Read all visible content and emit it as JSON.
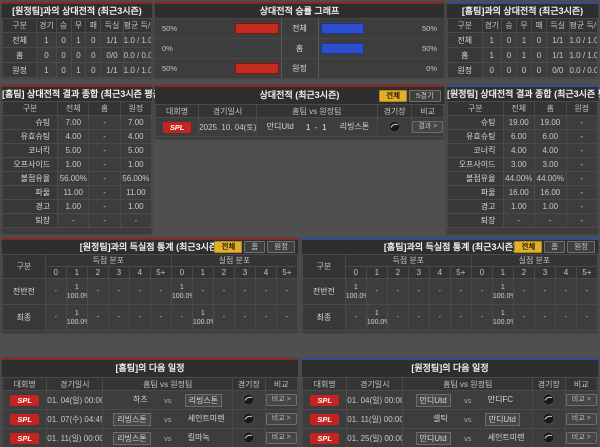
{
  "theme": {
    "red_accent": "#8a2523",
    "blue_accent": "#2d4f95",
    "bar_red": "#c32a20",
    "bar_blue": "#2c4fcd",
    "badge_red": "#c5231f",
    "selected_yellow": "#e3b02e"
  },
  "labels": {
    "vs": "vs"
  },
  "h2h_away": {
    "title": "[원정팀]과의 상대전적 (최근3시즌)",
    "columns": [
      "구분",
      "경기",
      "승",
      "무",
      "패",
      "득실",
      "평균 득/실"
    ],
    "rows": [
      {
        "label": "전체",
        "cells": [
          "1",
          "0",
          "1",
          "0",
          "1/1",
          "1.0 / 1.0"
        ]
      },
      {
        "label": "홈",
        "cells": [
          "0",
          "0",
          "0",
          "0",
          "0/0",
          "0.0 / 0.0"
        ]
      },
      {
        "label": "원정",
        "cells": [
          "1",
          "0",
          "1",
          "0",
          "1/1",
          "1.0 / 1.0"
        ]
      }
    ]
  },
  "winrate_chart": {
    "title": "상대전적 승률 그래프",
    "type": "bar",
    "rows": [
      {
        "left_pct": "50%",
        "left_val": 50,
        "label": "전체",
        "right_val": 50,
        "right_pct": "50%"
      },
      {
        "left_pct": "0%",
        "left_val": 0,
        "label": "홈",
        "right_val": 50,
        "right_pct": "50%"
      },
      {
        "left_pct": "50%",
        "left_val": 50,
        "label": "원정",
        "right_val": 0,
        "right_pct": "0%"
      }
    ]
  },
  "h2h_home": {
    "title": "[홈팀]과의 상대전적 (최근3시즌)",
    "columns": [
      "구분",
      "경기",
      "승",
      "무",
      "패",
      "득실",
      "평균 득/실"
    ],
    "rows": [
      {
        "label": "전체",
        "cells": [
          "1",
          "0",
          "1",
          "0",
          "1/1",
          "1.0 / 1.0"
        ]
      },
      {
        "label": "홈",
        "cells": [
          "1",
          "0",
          "1",
          "0",
          "1/1",
          "1.0 / 1.0"
        ]
      },
      {
        "label": "원정",
        "cells": [
          "0",
          "0",
          "0",
          "0",
          "0/0",
          "0.0 / 0.0"
        ]
      }
    ]
  },
  "stats_home": {
    "title": "[홈팀] 상대전적 결과 종합 (최근3시즌 평균)",
    "columns": [
      "구분",
      "전체",
      "홈",
      "원정"
    ],
    "rows": [
      {
        "label": "슈팅",
        "cells": [
          "7.00",
          "-",
          "7.00"
        ]
      },
      {
        "label": "유효슈팅",
        "cells": [
          "4.00",
          "-",
          "4.00"
        ]
      },
      {
        "label": "코너킥",
        "cells": [
          "5.00",
          "-",
          "5.00"
        ]
      },
      {
        "label": "오프사이드",
        "cells": [
          "1.00",
          "-",
          "1.00"
        ]
      },
      {
        "label": "볼점유율",
        "cells": [
          "56.00%",
          "-",
          "56.00%"
        ]
      },
      {
        "label": "파울",
        "cells": [
          "11.00",
          "-",
          "11.00"
        ]
      },
      {
        "label": "경고",
        "cells": [
          "1.00",
          "-",
          "1.00"
        ]
      },
      {
        "label": "퇴장",
        "cells": [
          "-",
          "-",
          "-"
        ]
      }
    ]
  },
  "matches": {
    "title": "상대전적 (최근3시즌)",
    "filters": [
      {
        "label": "전체",
        "selected": true
      },
      {
        "label": "5경기",
        "selected": false
      }
    ],
    "columns": [
      "대회명",
      "경기일시",
      "홈팀 vs 원정팀",
      "경기장",
      "비교"
    ],
    "row": {
      "league": "SPL",
      "date": "2025. 10. 04(토)",
      "home": "만디Utd",
      "score": "1 - 1",
      "away": "리빙스톤",
      "button": "결과 >"
    }
  },
  "stats_away": {
    "title": "[원정팀] 상대전적 결과 종합 (최근3시즌 평균)",
    "columns": [
      "구분",
      "전체",
      "홈",
      "원정"
    ],
    "rows": [
      {
        "label": "슈팅",
        "cells": [
          "19.00",
          "19.00",
          "-"
        ]
      },
      {
        "label": "유효슈팅",
        "cells": [
          "6.00",
          "6.00",
          "-"
        ]
      },
      {
        "label": "코너킥",
        "cells": [
          "4.00",
          "4.00",
          "-"
        ]
      },
      {
        "label": "오프사이드",
        "cells": [
          "3.00",
          "3.00",
          "-"
        ]
      },
      {
        "label": "볼점유율",
        "cells": [
          "44.00%",
          "44.00%",
          "-"
        ]
      },
      {
        "label": "파울",
        "cells": [
          "16.00",
          "16.00",
          "-"
        ]
      },
      {
        "label": "경고",
        "cells": [
          "1.00",
          "1.00",
          "-"
        ]
      },
      {
        "label": "퇴장",
        "cells": [
          "-",
          "-",
          "-"
        ]
      }
    ]
  },
  "dist_vs_away": {
    "title": "[원정팀]과의 득실점 통계 (최근3시즌)",
    "filters": [
      {
        "label": "전체",
        "selected": true
      },
      {
        "label": "홈",
        "selected": false
      },
      {
        "label": "원정",
        "selected": false
      }
    ],
    "col_label": "구분",
    "groups": [
      "득점 분포",
      "실점 분포"
    ],
    "bins": [
      "0",
      "1",
      "2",
      "3",
      "4",
      "5+",
      "0",
      "1",
      "2",
      "3",
      "4",
      "5+"
    ],
    "rows": [
      {
        "label": "전반전",
        "cells": [
          "-",
          "1\n100.0%",
          "-",
          "-",
          "-",
          "-",
          "1\n100.0%",
          "-",
          "-",
          "-",
          "-",
          "-"
        ]
      },
      {
        "label": "최종",
        "cells": [
          "-",
          "1\n100.0%",
          "-",
          "-",
          "-",
          "-",
          "-",
          "1\n100.0%",
          "-",
          "-",
          "-",
          "-"
        ]
      }
    ]
  },
  "dist_vs_home": {
    "title": "[홈팀]과의 득실점 통계 (최근3시즌)",
    "filters": [
      {
        "label": "전체",
        "selected": true
      },
      {
        "label": "홈",
        "selected": false
      },
      {
        "label": "원정",
        "selected": false
      }
    ],
    "col_label": "구분",
    "groups": [
      "득점 분포",
      "실점 분포"
    ],
    "bins": [
      "0",
      "1",
      "2",
      "3",
      "4",
      "5+",
      "0",
      "1",
      "2",
      "3",
      "4",
      "5+"
    ],
    "rows": [
      {
        "label": "전반전",
        "cells": [
          "1\n100.0%",
          "-",
          "-",
          "-",
          "-",
          "-",
          "-",
          "1\n100.0%",
          "-",
          "-",
          "-",
          "-"
        ]
      },
      {
        "label": "최종",
        "cells": [
          "-",
          "1\n100.0%",
          "-",
          "-",
          "-",
          "-",
          "-",
          "1\n100.0%",
          "-",
          "-",
          "-",
          "-"
        ]
      }
    ]
  },
  "schedule_home": {
    "title": "[홈팀]의 다음 일정",
    "columns": [
      "대회명",
      "경기일시",
      "홈팀 vs 원정팀",
      "경기장",
      "비교"
    ],
    "button": "비교 >",
    "rows": [
      {
        "league": "SPL",
        "date": "01. 04(일) 00:00",
        "home": "하츠",
        "away": "리빙스톤",
        "home_hl": false,
        "away_hl": true
      },
      {
        "league": "SPL",
        "date": "01. 07(수) 04:45",
        "home": "리빙스톤",
        "away": "세인트미렌",
        "home_hl": true,
        "away_hl": false
      },
      {
        "league": "SPL",
        "date": "01. 11(일) 00:00",
        "home": "리빙스톤",
        "away": "킬마녹",
        "home_hl": true,
        "away_hl": false
      }
    ]
  },
  "schedule_away": {
    "title": "[원정팀]의 다음 일정",
    "columns": [
      "대회명",
      "경기일시",
      "홈팀 vs 원정팀",
      "경기장",
      "비교"
    ],
    "button": "비교 >",
    "rows": [
      {
        "league": "SPL",
        "date": "01. 04(일) 00:00",
        "home": "만디Utd",
        "away": "만디FC",
        "home_hl": true,
        "away_hl": false
      },
      {
        "league": "SPL",
        "date": "01. 11(일) 00:00",
        "home": "셀틱",
        "away": "만디Utd",
        "home_hl": false,
        "away_hl": true
      },
      {
        "league": "SPL",
        "date": "01. 25(일) 00:00",
        "home": "만디Utd",
        "away": "세인트미렌",
        "home_hl": true,
        "away_hl": false
      }
    ]
  }
}
